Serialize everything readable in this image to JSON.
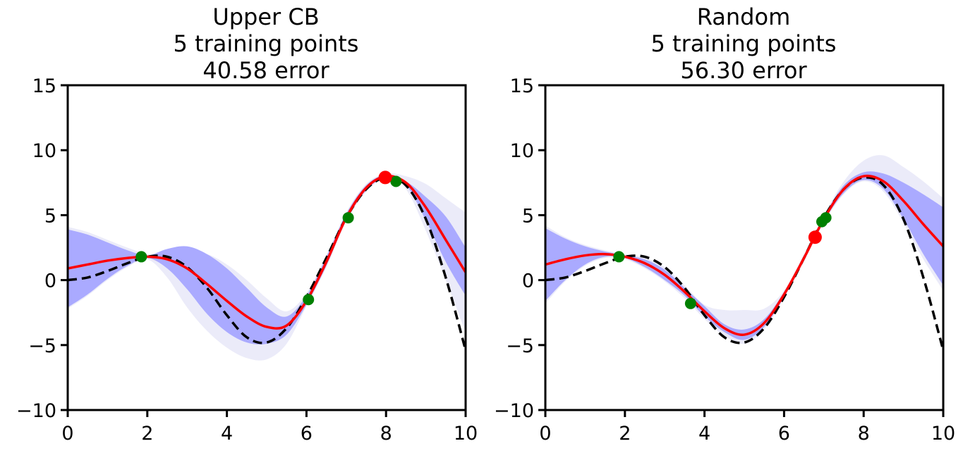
{
  "chart_data": [
    {
      "type": "line",
      "title": "Upper CB",
      "subtitle_lines": [
        "5 training points",
        "40.58 error"
      ],
      "xlabel": "",
      "ylabel": "",
      "xlim": [
        0,
        10
      ],
      "ylim": [
        -10,
        15
      ],
      "xticks": [
        "0",
        "2",
        "4",
        "6",
        "8",
        "10"
      ],
      "yticks": [
        "−10",
        "−5",
        "0",
        "5",
        "10",
        "15"
      ],
      "xtick_values": [
        0,
        2,
        4,
        6,
        8,
        10
      ],
      "ytick_values": [
        -10,
        -5,
        0,
        5,
        10,
        15
      ],
      "grid": false,
      "legend": "none",
      "colors": {
        "true_function": "#000000",
        "mean": "#ff0000",
        "band_inner": "#aaaaff",
        "band_outer": "#e8e8f8",
        "training_points": "#008000",
        "next_point": "#ff0000"
      },
      "x": [
        0,
        0.5,
        1,
        1.5,
        2,
        2.5,
        3,
        3.5,
        4,
        4.5,
        5,
        5.5,
        6,
        6.5,
        7,
        7.5,
        8,
        8.5,
        9,
        9.5,
        10
      ],
      "series": [
        {
          "role": "true_function",
          "style": "dashed",
          "values": [
            0,
            0.2,
            0.7,
            1.3,
            1.8,
            1.8,
            1.0,
            -0.6,
            -2.7,
            -4.4,
            -4.8,
            -3.7,
            -1.3,
            1.7,
            4.8,
            7.0,
            7.9,
            7.3,
            4.7,
            0.2,
            -5.4
          ]
        },
        {
          "role": "mean",
          "style": "solid",
          "values": [
            0.9,
            1.2,
            1.5,
            1.7,
            1.8,
            1.6,
            0.9,
            -0.3,
            -1.6,
            -2.8,
            -3.6,
            -3.5,
            -1.6,
            1.4,
            4.8,
            7.1,
            8.0,
            7.5,
            5.6,
            3.1,
            0.6
          ]
        },
        {
          "role": "band_inner_upper",
          "values": [
            3.9,
            3.5,
            2.9,
            2.3,
            1.9,
            2.4,
            2.6,
            2.0,
            0.9,
            -0.6,
            -2.1,
            -2.8,
            -1.2,
            1.8,
            5.1,
            7.3,
            8.1,
            7.6,
            6.4,
            4.9,
            2.5
          ]
        },
        {
          "role": "band_inner_lower",
          "values": [
            -2.1,
            -1.1,
            0.1,
            1.1,
            1.7,
            0.9,
            -0.7,
            -2.6,
            -4.0,
            -4.8,
            -4.9,
            -4.2,
            -1.9,
            1.1,
            4.6,
            6.9,
            7.9,
            7.3,
            4.6,
            1.4,
            -1.2
          ]
        },
        {
          "role": "band_outer_upper",
          "values": [
            4.1,
            3.7,
            3.1,
            2.5,
            2.0,
            1.9,
            2.1,
            2.0,
            1.2,
            0.0,
            -1.4,
            -2.4,
            -1.0,
            1.9,
            5.2,
            7.4,
            8.2,
            8.0,
            7.4,
            6.3,
            5.2
          ]
        },
        {
          "role": "band_outer_lower",
          "values": [
            -2.2,
            -1.2,
            0.0,
            1.0,
            1.6,
            0.2,
            -2.1,
            -3.9,
            -5.2,
            -6.0,
            -6.1,
            -4.9,
            -2.0,
            1.0,
            4.5,
            6.8,
            7.8,
            7.0,
            3.8,
            0.0,
            -4.0
          ]
        }
      ],
      "training_points": {
        "x": [
          1.85,
          6.05,
          7.05,
          8.25
        ],
        "y": [
          1.8,
          -1.5,
          4.8,
          7.6
        ]
      },
      "next_point": {
        "x": [
          7.98
        ],
        "y": [
          7.9
        ]
      }
    },
    {
      "type": "line",
      "title": "Random",
      "subtitle_lines": [
        "5 training points",
        "56.30 error"
      ],
      "xlabel": "",
      "ylabel": "",
      "xlim": [
        0,
        10
      ],
      "ylim": [
        -10,
        15
      ],
      "xticks": [
        "0",
        "2",
        "4",
        "6",
        "8",
        "10"
      ],
      "yticks": [
        "−10",
        "−5",
        "0",
        "5",
        "10",
        "15"
      ],
      "xtick_values": [
        0,
        2,
        4,
        6,
        8,
        10
      ],
      "ytick_values": [
        -10,
        -5,
        0,
        5,
        10,
        15
      ],
      "grid": false,
      "legend": "none",
      "colors": {
        "true_function": "#000000",
        "mean": "#ff0000",
        "band_inner": "#aaaaff",
        "band_outer": "#e8e8f8",
        "training_points": "#008000",
        "next_point": "#ff0000"
      },
      "x": [
        0,
        0.5,
        1,
        1.5,
        2,
        2.5,
        3,
        3.5,
        4,
        4.5,
        5,
        5.5,
        6,
        6.5,
        7,
        7.5,
        8,
        8.5,
        9,
        9.5,
        10
      ],
      "series": [
        {
          "role": "true_function",
          "style": "dashed",
          "values": [
            0,
            0.2,
            0.7,
            1.3,
            1.8,
            1.8,
            1.0,
            -0.6,
            -2.7,
            -4.4,
            -4.8,
            -3.7,
            -1.3,
            1.7,
            4.8,
            7.0,
            7.9,
            7.3,
            4.7,
            0.2,
            -5.4
          ]
        },
        {
          "role": "mean",
          "style": "solid",
          "values": [
            1.2,
            1.6,
            1.9,
            2.0,
            1.8,
            1.3,
            0.4,
            -0.9,
            -2.4,
            -3.7,
            -4.2,
            -3.3,
            -1.1,
            1.7,
            4.7,
            7.0,
            8.0,
            7.6,
            6.1,
            4.3,
            2.6
          ]
        },
        {
          "role": "band_inner_upper",
          "values": [
            4.0,
            3.2,
            2.6,
            2.2,
            1.9,
            1.6,
            0.8,
            -0.6,
            -2.0,
            -3.4,
            -3.8,
            -3.0,
            -0.9,
            1.9,
            4.9,
            7.3,
            8.3,
            8.2,
            7.5,
            6.6,
            5.6
          ]
        },
        {
          "role": "band_inner_lower",
          "values": [
            -1.6,
            0.0,
            1.2,
            1.8,
            1.7,
            1.0,
            0.0,
            -1.2,
            -2.8,
            -4.0,
            -4.6,
            -3.6,
            -1.3,
            1.5,
            4.5,
            6.7,
            7.7,
            7.0,
            4.7,
            2.0,
            -0.4
          ]
        },
        {
          "role": "band_outer_upper",
          "values": [
            4.2,
            3.3,
            2.7,
            2.3,
            2.0,
            1.7,
            1.0,
            -0.4,
            -1.9,
            -2.3,
            -2.3,
            -2.2,
            -0.8,
            2.0,
            5.0,
            7.6,
            9.2,
            9.6,
            8.7,
            7.6,
            6.3
          ]
        },
        {
          "role": "band_outer_lower",
          "values": [
            -1.8,
            -0.1,
            1.1,
            1.7,
            1.6,
            0.9,
            -0.1,
            -1.4,
            -3.0,
            -4.3,
            -4.9,
            -3.8,
            -1.4,
            1.4,
            4.4,
            6.6,
            7.6,
            6.8,
            4.4,
            1.6,
            -0.8
          ]
        }
      ],
      "training_points": {
        "x": [
          1.85,
          3.65,
          6.95,
          7.05
        ],
        "y": [
          1.8,
          -1.8,
          4.5,
          4.8
        ]
      },
      "next_point": {
        "x": [
          6.78
        ],
        "y": [
          3.3
        ]
      }
    }
  ]
}
